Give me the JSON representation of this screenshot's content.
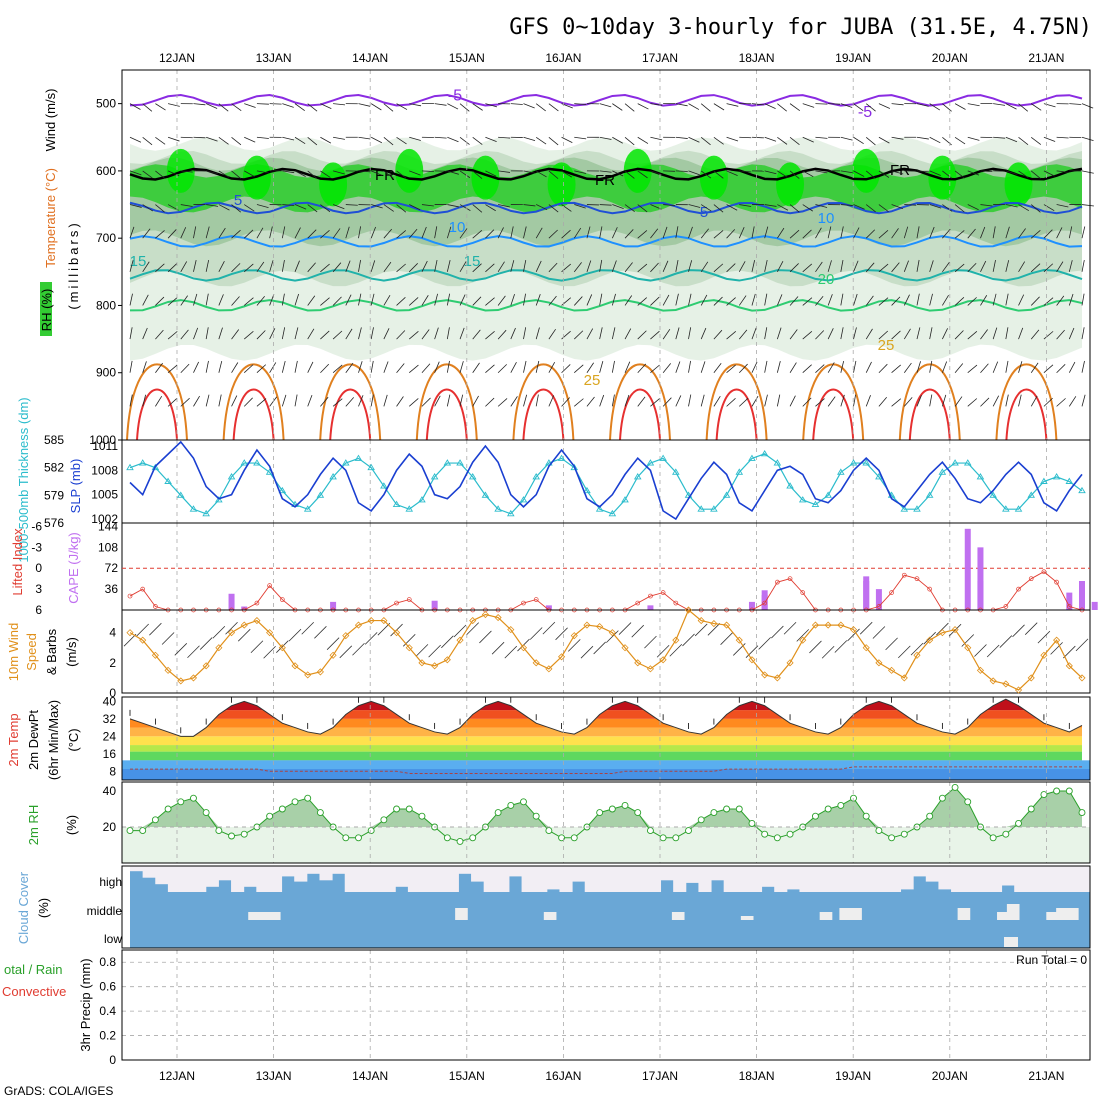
{
  "title": "GFS 0~10day 3-hourly for JUBA (31.5E, 4.75N)",
  "footer": "GrADS: COLA/IGES",
  "dates": [
    "12JAN",
    "13JAN",
    "14JAN",
    "15JAN",
    "16JAN",
    "17JAN",
    "18JAN",
    "19JAN",
    "20JAN",
    "21JAN"
  ],
  "colors": {
    "rh_light": "#e3f0e3",
    "rh_mid": "#c4dcc4",
    "rh_dark": "#9fc79f",
    "rh_green": "#33cc33",
    "rh_bright": "#00e600",
    "temp_neg": "#8a2be2",
    "freezing": "#000000",
    "temp_5": "#1f4fd6",
    "temp_10": "#1e90ff",
    "temp_15": "#20b2aa",
    "temp_20": "#2ecc71",
    "temp_25": "#daa520",
    "temp_30": "#e0801f",
    "temp_35": "#e63030",
    "slp": "#1a3fd1",
    "thickness": "#2bbccc",
    "cape": "#c070f0",
    "lifted": "#e03c31",
    "wind_speed": "#e0901a",
    "rh2m": "#2aa02a",
    "cloud": "#6aa7d6",
    "grid": "#aaaaaa"
  },
  "chart_data": [
    {
      "type": "contour",
      "panel": "upper-air",
      "ylabel_parts": [
        "Wind (m/s)",
        "Temperature (°C)",
        "RH (%)",
        "(millibars)"
      ],
      "ylim": [
        1000,
        450
      ],
      "yticks": [
        500,
        600,
        700,
        800,
        900,
        1000
      ],
      "rh_levels": [
        30,
        50,
        70,
        90
      ],
      "temperature_levels_C": [
        -5,
        0,
        5,
        10,
        15,
        20,
        25,
        30,
        35
      ],
      "contour_labels": [
        {
          "text": "-5",
          "level": -5
        },
        {
          "text": "-5",
          "level": -5
        },
        {
          "text": "FR",
          "level": 0
        },
        {
          "text": "FR",
          "level": 0
        },
        {
          "text": "FR",
          "level": 0
        },
        {
          "text": "5",
          "level": 5
        },
        {
          "text": "5",
          "level": 5
        },
        {
          "text": "10",
          "level": 10
        },
        {
          "text": "10",
          "level": 10
        },
        {
          "text": "15",
          "level": 15
        },
        {
          "text": "15",
          "level": 15
        },
        {
          "text": "20",
          "level": 20
        },
        {
          "text": "25",
          "level": 25
        },
        {
          "text": "25",
          "level": 25
        }
      ],
      "isotherm_pressure_mb": {
        "-5": 495,
        "0": 605,
        "5": 655,
        "10": 705,
        "15": 755,
        "20": 800
      }
    },
    {
      "type": "line",
      "panel": "slp-thickness",
      "series": [
        {
          "name": "SLP (mb)",
          "axis": "right",
          "values": [
            1006.5,
            1005.0,
            1008.5,
            1010.0,
            1011.5,
            1009.5,
            1006.0,
            1004.5,
            1005.0,
            1008.0,
            1010.5,
            1008.5,
            1004.5,
            1003.5,
            1005.0,
            1007.5,
            1009.5,
            1008.0,
            1004.0,
            1003.0,
            1005.0,
            1008.0,
            1010.0,
            1008.5,
            1005.0,
            1004.5,
            1006.0,
            1009.0,
            1011.0,
            1009.0,
            1005.0,
            1003.5,
            1005.0,
            1008.5,
            1010.5,
            1008.5,
            1004.5,
            1003.5,
            1005.0,
            1007.5,
            1009.5,
            1008.0,
            1003.0,
            1002.0,
            1004.5,
            1007.0,
            1009.0,
            1007.5,
            1004.0,
            1003.0,
            1005.5,
            1008.0,
            1008.5,
            1007.5,
            1004.5,
            1004.0,
            1005.5,
            1008.0,
            1009.5,
            1008.0,
            1004.5,
            1003.5,
            1005.5,
            1007.5,
            1009.0,
            1007.0,
            1004.5,
            1004.0,
            1005.5,
            1007.5,
            1009.0,
            1007.5,
            1004.0,
            1003.0,
            1005.5,
            1007.5
          ]
        },
        {
          "name": "1000-500mb Thickness (dm)",
          "axis": "left",
          "values": [
            582.0,
            582.5,
            582.0,
            580.5,
            579.0,
            577.5,
            577.0,
            578.5,
            581.0,
            582.5,
            582.5,
            581.5,
            579.5,
            578.0,
            577.5,
            579.0,
            581.0,
            582.5,
            583.0,
            582.0,
            580.0,
            578.0,
            577.5,
            578.5,
            581.0,
            582.5,
            582.5,
            581.0,
            579.0,
            577.5,
            577.0,
            578.5,
            581.0,
            582.5,
            583.0,
            582.0,
            579.5,
            577.5,
            577.0,
            578.5,
            581.0,
            582.5,
            583.0,
            581.5,
            579.0,
            577.5,
            577.5,
            579.0,
            581.5,
            583.0,
            583.5,
            582.5,
            580.0,
            578.5,
            578.0,
            579.0,
            581.5,
            582.5,
            582.5,
            581.0,
            579.0,
            577.5,
            577.5,
            579.0,
            581.5,
            582.5,
            582.5,
            581.0,
            579.0,
            577.5,
            577.5,
            579.0,
            580.5,
            581.0,
            580.5,
            579.5
          ]
        }
      ],
      "left_ylabel": "1000-500mb Thickness (dm)",
      "right_ylabel": "SLP (mb)",
      "left_ticks": [
        576,
        579,
        582,
        585
      ],
      "right_ticks": [
        1002,
        1005,
        1008,
        1011
      ]
    },
    {
      "type": "bar+line",
      "panel": "cape-lifted",
      "cape_ylabel": "CAPE (J/kg)",
      "lifted_ylabel": "Lifted Index",
      "cape_ticks": [
        36,
        72,
        108,
        144
      ],
      "lifted_ticks": [
        6,
        3,
        0,
        -3,
        -6
      ],
      "cape_values": [
        0,
        0,
        0,
        0,
        0,
        0,
        0,
        0,
        0,
        0,
        0,
        28,
        14,
        0,
        0,
        0,
        0,
        0,
        0,
        0,
        0,
        0,
        0,
        0,
        0,
        0,
        0,
        0,
        0,
        0,
        0,
        0,
        0,
        0,
        0,
        0,
        0,
        0,
        0,
        0,
        0,
        0,
        0,
        0,
        0,
        0,
        0,
        0,
        0,
        0,
        0,
        0,
        0,
        0,
        0,
        0,
        0,
        0,
        0,
        0,
        0,
        0,
        0,
        0,
        0,
        0,
        0,
        0,
        0,
        0,
        0,
        0,
        0,
        0,
        0,
        0
      ],
      "lifted_values": [
        4.0,
        3.0,
        5.5,
        6.0,
        6.0,
        6.0,
        6.0,
        6.0,
        6.0,
        6.0,
        5.0,
        2.5,
        4.5,
        6.0,
        6.0,
        6.0,
        6.0,
        6.0,
        6.0,
        6.0,
        6.0,
        5.0,
        4.5,
        6.0,
        6.0,
        6.0,
        6.0,
        6.0,
        6.0,
        6.0,
        6.0,
        5.0,
        4.5,
        6.0,
        6.0,
        6.0,
        6.0,
        6.0,
        6.0,
        6.0,
        5.0,
        4.0,
        3.5,
        5.0,
        6.0,
        6.0,
        6.0,
        6.0,
        6.0,
        6.0,
        5.0,
        2.0,
        1.5,
        3.5,
        6.0,
        6.0,
        6.0,
        6.0,
        6.0,
        5.5,
        3.5,
        1.0,
        1.5,
        3.0,
        6.0,
        6.0,
        6.0,
        6.0,
        6.0,
        5.5,
        3.0,
        1.5,
        0.5,
        2.0,
        5.5,
        6.0
      ]
    },
    {
      "type": "line",
      "panel": "wind10m",
      "ylabel_parts": [
        "10m Wind",
        "Speed",
        "& Barbs",
        "(m/s)"
      ],
      "ylim": [
        0,
        5.5
      ],
      "yticks": [
        0,
        2,
        4
      ],
      "values": [
        4.0,
        3.5,
        2.5,
        1.5,
        0.8,
        1.0,
        1.8,
        3.0,
        4.0,
        4.5,
        4.8,
        4.0,
        3.0,
        1.8,
        1.2,
        1.4,
        2.5,
        3.8,
        4.5,
        4.8,
        4.8,
        4.0,
        3.0,
        2.0,
        1.8,
        2.2,
        3.5,
        4.8,
        5.2,
        5.0,
        4.2,
        3.0,
        2.0,
        1.6,
        2.4,
        3.8,
        4.5,
        4.4,
        4.0,
        3.0,
        2.0,
        1.6,
        2.2,
        3.5,
        5.5,
        4.8,
        4.6,
        4.5,
        3.5,
        2.2,
        1.2,
        1.0,
        2.0,
        3.5,
        4.5,
        4.5,
        4.5,
        4.2,
        3.0,
        2.0,
        1.5,
        1.0,
        2.5,
        3.5,
        4.0,
        4.2,
        3.0,
        1.5,
        0.8,
        0.6,
        0.2,
        1.0,
        2.5,
        3.5,
        1.8,
        1.0
      ]
    },
    {
      "type": "area",
      "panel": "temp2m",
      "ylabel_parts": [
        "2m Temp",
        "2m DewPt",
        "(6hr Min/Max)",
        "(°C)"
      ],
      "ylim": [
        4,
        42
      ],
      "yticks": [
        8,
        16,
        24,
        32,
        40
      ],
      "temperature_values": [
        32,
        30,
        28,
        26,
        24,
        24,
        28,
        34,
        38,
        40,
        38,
        34,
        30,
        28,
        26,
        25,
        28,
        34,
        38,
        40,
        38,
        34,
        30,
        28,
        26,
        25,
        28,
        34,
        38,
        40,
        38,
        34,
        30,
        28,
        26,
        25,
        28,
        34,
        38,
        40,
        38,
        34,
        30,
        28,
        26,
        25,
        28,
        34,
        38,
        40,
        38,
        34,
        30,
        28,
        26,
        25,
        28,
        34,
        38,
        40,
        38,
        34,
        30,
        28,
        26,
        25,
        28,
        34,
        38,
        41,
        38,
        34,
        30,
        28,
        26,
        29
      ],
      "dewpoint_values": [
        9,
        9,
        9,
        9,
        9,
        9,
        9,
        9,
        9,
        9,
        9,
        8,
        8,
        8,
        8,
        8,
        8,
        8,
        8,
        8,
        8,
        8,
        7,
        7,
        7,
        7,
        7,
        7,
        7,
        7,
        7,
        7,
        7,
        7,
        7,
        7,
        7,
        7,
        7,
        8,
        8,
        8,
        8,
        8,
        8,
        8,
        8,
        9,
        9,
        9,
        9,
        9,
        9,
        9,
        9,
        9,
        9,
        10,
        10,
        10,
        10,
        10,
        10,
        10,
        10,
        10,
        10,
        10,
        10,
        10,
        10,
        10,
        10,
        10,
        10,
        10
      ]
    },
    {
      "type": "area",
      "panel": "rh2m",
      "ylabel_parts": [
        "2m RH",
        "(%)"
      ],
      "ylim": [
        0,
        45
      ],
      "yticks": [
        20,
        40
      ],
      "values": [
        18,
        18,
        24,
        30,
        34,
        36,
        28,
        18,
        15,
        16,
        20,
        26,
        30,
        34,
        36,
        28,
        20,
        14,
        14,
        18,
        24,
        30,
        30,
        26,
        20,
        14,
        12,
        14,
        20,
        28,
        32,
        34,
        26,
        18,
        14,
        14,
        20,
        28,
        30,
        32,
        28,
        18,
        14,
        14,
        18,
        24,
        28,
        30,
        30,
        22,
        16,
        14,
        16,
        20,
        26,
        30,
        32,
        36,
        26,
        18,
        14,
        16,
        20,
        26,
        36,
        42,
        34,
        20,
        14,
        16,
        22,
        30,
        38,
        40,
        40,
        28
      ]
    },
    {
      "type": "step",
      "panel": "cloud-cover",
      "ylabel_parts": [
        "Cloud Cover",
        "(%)"
      ],
      "row_labels": [
        "high",
        "middle",
        "low"
      ],
      "high_values": [
        80,
        55,
        30,
        0,
        0,
        0,
        20,
        45,
        0,
        20,
        0,
        0,
        60,
        40,
        70,
        45,
        70,
        0,
        0,
        0,
        0,
        20,
        0,
        0,
        0,
        0,
        70,
        40,
        0,
        0,
        60,
        0,
        0,
        10,
        0,
        40,
        0,
        0,
        0,
        0,
        0,
        0,
        45,
        0,
        35,
        0,
        45,
        0,
        0,
        0,
        20,
        0,
        10,
        0,
        0,
        0,
        0,
        0,
        0,
        0,
        0,
        10,
        60,
        40,
        10,
        0,
        0,
        0,
        0,
        25,
        0,
        0,
        0,
        0,
        0,
        0
      ],
      "middle_values": [
        0,
        0,
        0,
        0,
        0,
        0,
        0,
        0,
        0,
        0,
        0,
        0,
        0,
        0,
        0,
        0,
        0,
        0,
        0,
        0,
        0,
        0,
        0,
        0,
        0,
        0,
        0,
        0,
        0,
        0,
        0,
        0,
        0,
        0,
        0,
        0,
        0,
        0,
        0,
        0,
        0,
        0,
        0,
        0,
        0,
        0,
        0,
        0,
        0,
        0,
        0,
        0,
        0,
        0,
        0,
        0,
        0,
        0,
        0,
        0,
        0,
        0,
        0,
        0,
        0,
        0,
        0,
        0,
        0,
        0,
        0,
        0,
        0,
        0,
        0,
        0
      ],
      "low_values": [
        0,
        0,
        0,
        0,
        0,
        0,
        0,
        0,
        0,
        0,
        0,
        0,
        0,
        0,
        0,
        0,
        0,
        0,
        0,
        0,
        0,
        0,
        0,
        0,
        0,
        0,
        0,
        0,
        0,
        0,
        0,
        0,
        0,
        0,
        0,
        0,
        0,
        0,
        0,
        0,
        0,
        0,
        0,
        0,
        0,
        0,
        0,
        0,
        0,
        0,
        0,
        0,
        0,
        0,
        0,
        0,
        0,
        0,
        0,
        0,
        0,
        0,
        0,
        0,
        0,
        0,
        0,
        0,
        0,
        0,
        0,
        0,
        0,
        0,
        0,
        0
      ]
    },
    {
      "type": "bar",
      "panel": "precip",
      "ylabel": "3hr Precip (mm)",
      "side_label_total": "otal / Rain",
      "side_label_conv": "Convective",
      "ylim": [
        0,
        0.9
      ],
      "yticks": [
        0,
        0.2,
        0.4,
        0.6,
        0.8
      ],
      "run_total_label": "Run Total = 0",
      "values": []
    }
  ]
}
